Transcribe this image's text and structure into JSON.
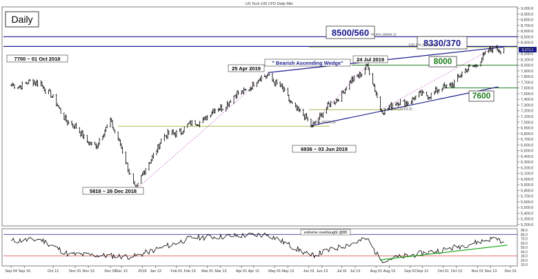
{
  "title": "US Tech 100 CFD Daily Mid",
  "timeframe_label": "Daily",
  "chart_data": [
    {
      "type": "line",
      "panel": "price",
      "title": "US Tech 100 CFD Daily Mid",
      "price_scale": [
        "9,000.0",
        "8,900.0",
        "8,800.0",
        "8,700.0",
        "8,600.0",
        "8,500.0",
        "8,400.0",
        "8,300.0",
        "8,200.0",
        "8,100.0",
        "8,000.0",
        "7,900.0",
        "7,800.0",
        "7,700.0",
        "7,600.0",
        "7,500.0",
        "7,400.0",
        "7,300.0",
        "7,200.0",
        "7,100.0",
        "7,000.0",
        "6,900.0",
        "6,800.0",
        "6,700.0",
        "6,600.0",
        "6,500.0",
        "6,400.0",
        "6,300.0",
        "6,200.0",
        "6,100.0",
        "6,000.0",
        "5,900.0",
        "5,800.0",
        "5,700.0",
        "5,600.0",
        "5,500.0",
        "5,400.0",
        "5,300.0",
        "5,200.0"
      ],
      "ylim": [
        5200,
        9000
      ],
      "last_price": "8,273.3",
      "x_labels": [
        "Sep 04",
        "Sep 16",
        "Oct 12",
        "Nov 01",
        "Nov 13",
        "Dec 03",
        "Dec 13",
        "2019",
        "Jan 13",
        "Feb 01",
        "Feb 13",
        "Mar 01",
        "Mar 13",
        "Apr 01",
        "Apr 12",
        "May 01",
        "May 13",
        "Jun 01",
        "Jun 13",
        "Jul 01",
        "Jul 13",
        "Aug 01",
        "Aug 13",
        "Sep 01",
        "Sep 12",
        "Oct 01",
        "Oct 13",
        "Nov 01",
        "Nov 13",
        "Dec 01"
      ],
      "key_points": [
        {
          "date": "2018-09-04",
          "close": 7650
        },
        {
          "date": "2018-10-01",
          "close": 7700
        },
        {
          "date": "2018-10-26",
          "close": 7000
        },
        {
          "date": "2018-11-20",
          "close": 6550
        },
        {
          "date": "2018-12-03",
          "close": 7050
        },
        {
          "date": "2018-12-26",
          "close": 5818
        },
        {
          "date": "2019-01-18",
          "close": 6700
        },
        {
          "date": "2019-02-25",
          "close": 7050
        },
        {
          "date": "2019-04-25",
          "close": 7850
        },
        {
          "date": "2019-06-03",
          "close": 6936
        },
        {
          "date": "2019-07-24",
          "close": 8000
        },
        {
          "date": "2019-08-05",
          "close": 7218
        },
        {
          "date": "2019-10-03",
          "close": 7600
        },
        {
          "date": "2019-11-18",
          "close": 8330
        },
        {
          "date": "2019-11-25",
          "close": 8273
        }
      ],
      "annotations": [
        {
          "text": "7700 ~ 01 Oct 2018"
        },
        {
          "text": "5818 ~ 26 Dec 2018"
        },
        {
          "text": "25 Apr 2019"
        },
        {
          "text": "6936 ~ 03 Jun 2019"
        },
        {
          "text": "24 Jul 2019"
        },
        {
          "text": "\" Bearish Ascending Wedge\""
        },
        {
          "text": "0.0% (6926.9)"
        },
        {
          "text": "0.0% (7218.0)"
        },
        {
          "text": "100.0% (8314.2)"
        },
        {
          "text": "76.4% (8494.2)"
        }
      ],
      "levels": [
        {
          "label": "8500/560",
          "value": 8500,
          "color": "#1a1a8c"
        },
        {
          "label": "8330/370",
          "value": 8330,
          "color": "#1a1a8c"
        },
        {
          "label": "8000",
          "value": 8000,
          "color": "#1e7d1e"
        },
        {
          "label": "7600",
          "value": 7600,
          "color": "#1e7d1e"
        }
      ],
      "colors": {
        "price": "#000000",
        "resistance": "#1a1a8c",
        "support": "#1e7d1e",
        "fib": "#a9b94a",
        "projection": "#cc66cc"
      }
    },
    {
      "type": "line",
      "panel": "rsi",
      "title": "extreme overbought @80",
      "ylim": [
        10,
        90
      ],
      "y_ticks": [
        "90.0",
        "80.0",
        "70.0",
        "60.0",
        "50.0",
        "40.0",
        "30.0",
        "20.0",
        "10.0"
      ],
      "key_points": [
        {
          "date": "2018-09-04",
          "value": 65
        },
        {
          "date": "2018-10-01",
          "value": 68
        },
        {
          "date": "2018-10-26",
          "value": 34
        },
        {
          "date": "2018-12-24",
          "value": 28
        },
        {
          "date": "2019-02-15",
          "value": 72
        },
        {
          "date": "2019-04-25",
          "value": 80
        },
        {
          "date": "2019-06-03",
          "value": 30
        },
        {
          "date": "2019-07-24",
          "value": 70
        },
        {
          "date": "2019-08-05",
          "value": 20
        },
        {
          "date": "2019-10-03",
          "value": 45
        },
        {
          "date": "2019-11-18",
          "value": 72
        },
        {
          "date": "2019-11-25",
          "value": 63
        }
      ],
      "levels": [
        80,
        30
      ],
      "colors": {
        "rsi": "#000000",
        "overbought": "#1a1a8c",
        "oversold": "#d04040",
        "trendline": "#22aa22"
      }
    }
  ]
}
